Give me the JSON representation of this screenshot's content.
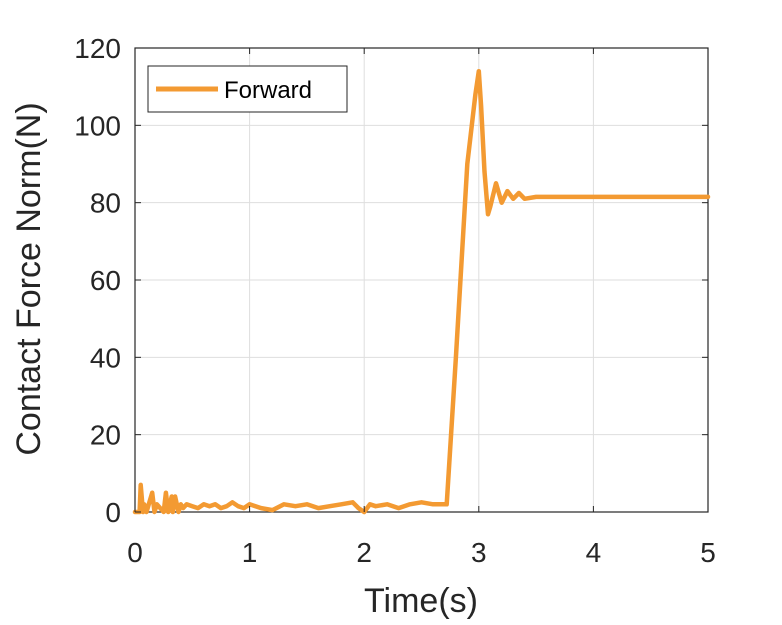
{
  "chart_data": {
    "type": "line",
    "title": "",
    "xlabel": "Time(s)",
    "ylabel": "Contact Force Norm(N)",
    "xlim": [
      0,
      5
    ],
    "ylim": [
      0,
      120
    ],
    "xticks": [
      0,
      1,
      2,
      3,
      4,
      5
    ],
    "yticks": [
      0,
      20,
      40,
      60,
      80,
      100,
      120
    ],
    "xtick_labels": [
      "0",
      "1",
      "2",
      "3",
      "4",
      "5"
    ],
    "ytick_labels": [
      "0",
      "20",
      "40",
      "60",
      "80",
      "100",
      "120"
    ],
    "grid": true,
    "legend_position": "top-left",
    "series": [
      {
        "name": "Forward",
        "color": "#F39A32",
        "x": [
          0,
          0.04,
          0.05,
          0.07,
          0.08,
          0.1,
          0.15,
          0.17,
          0.19,
          0.25,
          0.27,
          0.29,
          0.32,
          0.33,
          0.35,
          0.38,
          0.4,
          0.42,
          0.45,
          0.5,
          0.55,
          0.6,
          0.65,
          0.7,
          0.75,
          0.8,
          0.85,
          0.9,
          0.95,
          1.0,
          1.1,
          1.2,
          1.3,
          1.4,
          1.5,
          1.6,
          1.7,
          1.8,
          1.9,
          1.95,
          2.0,
          2.05,
          2.1,
          2.2,
          2.3,
          2.4,
          2.5,
          2.6,
          2.7,
          2.72,
          2.8,
          2.9,
          2.97,
          3.0,
          3.02,
          3.05,
          3.08,
          3.1,
          3.15,
          3.2,
          3.25,
          3.3,
          3.35,
          3.4,
          3.5,
          3.6,
          3.8,
          4.0,
          4.5,
          5.0
        ],
        "y": [
          0,
          0,
          7,
          0,
          2,
          0,
          5,
          0,
          2,
          0,
          5,
          0,
          4,
          0,
          4,
          0,
          2,
          1,
          2,
          1.5,
          1,
          2,
          1.5,
          2,
          1,
          1.5,
          2.5,
          1.5,
          1,
          2,
          1,
          0.5,
          2,
          1.5,
          2,
          1,
          1.5,
          2,
          2.5,
          1,
          0,
          2,
          1.5,
          2,
          1,
          2,
          2.5,
          2,
          2,
          2,
          40,
          90,
          108,
          114,
          105,
          88,
          77,
          79,
          85,
          80,
          83,
          81,
          82.5,
          81,
          81.5,
          81.5,
          81.5,
          81.5,
          81.5,
          81.5
        ]
      }
    ]
  }
}
